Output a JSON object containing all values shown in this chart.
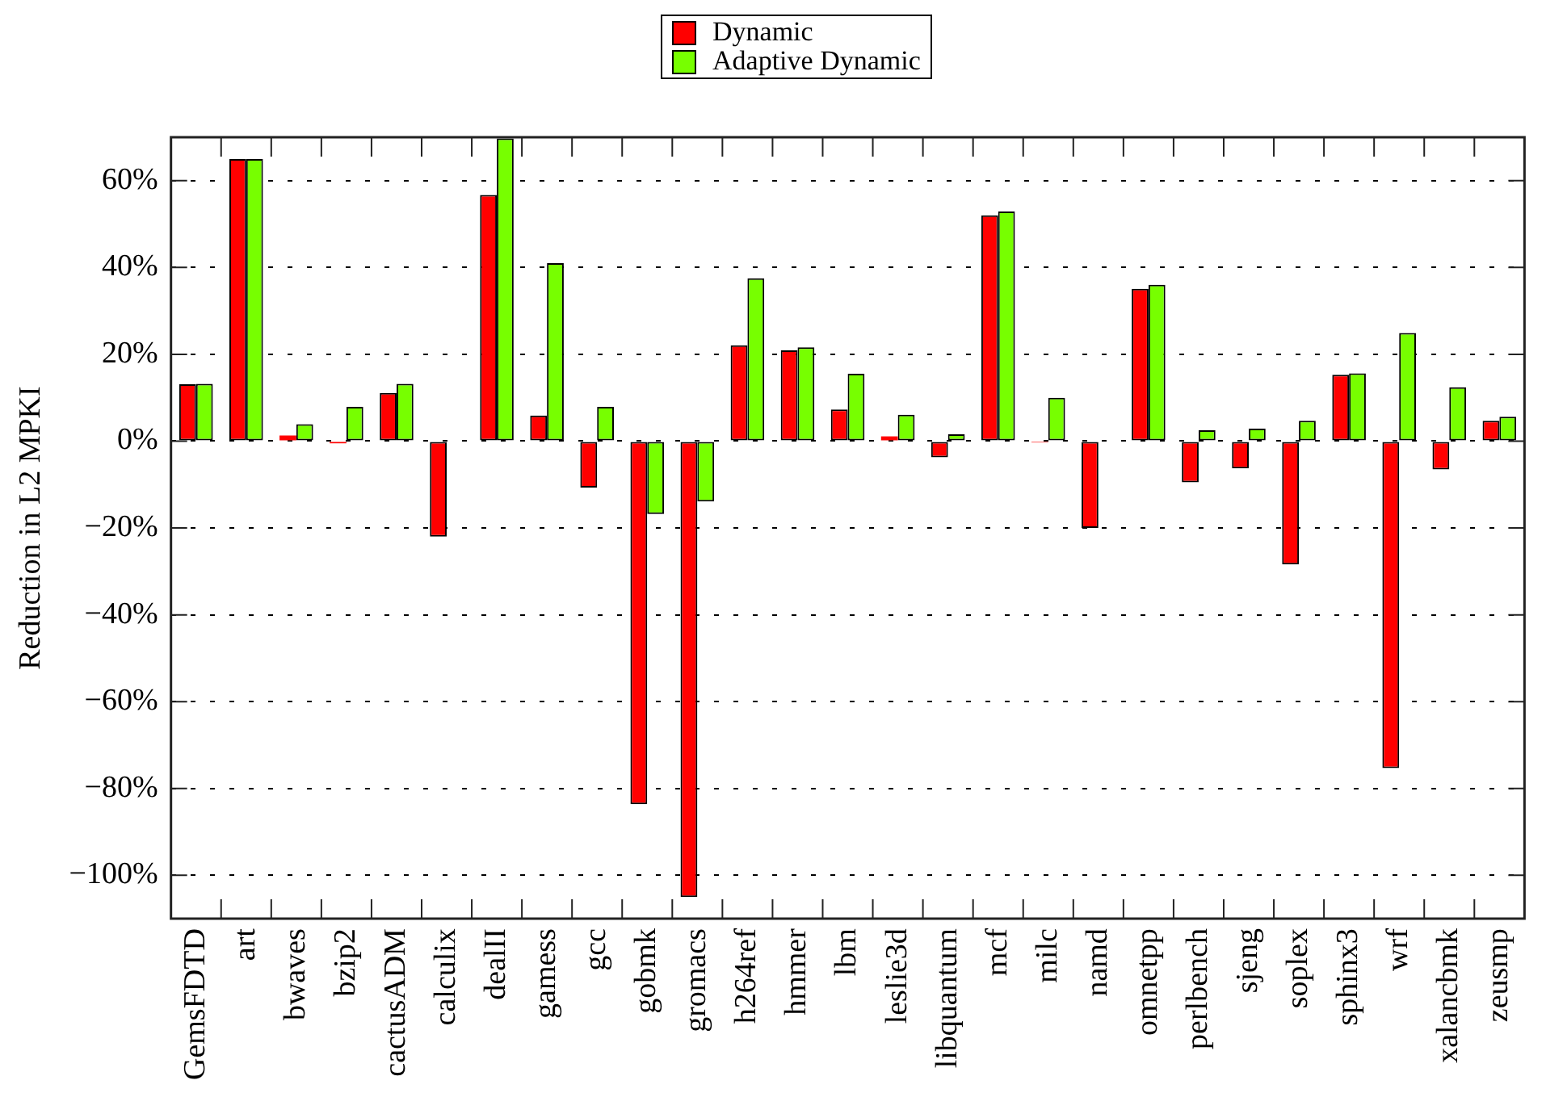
{
  "chart_data": {
    "type": "bar",
    "ylabel": "Reduction in L2 MPKI",
    "categories": [
      "GemsFDTD",
      "art",
      "bwaves",
      "bzip2",
      "cactusADM",
      "calculix",
      "dealII",
      "gamess",
      "gcc",
      "gobmk",
      "gromacs",
      "h264ref",
      "hmmer",
      "lbm",
      "leslie3d",
      "libquantum",
      "mcf",
      "milc",
      "namd",
      "omnetpp",
      "perlbench",
      "sjeng",
      "soplex",
      "sphinx3",
      "wrf",
      "xalancbmk",
      "zeusmp"
    ],
    "series": [
      {
        "name": "Dynamic",
        "color": "#ff0000",
        "values": [
          13.1,
          65,
          1.3,
          -0.5,
          11.1,
          -22,
          56.7,
          5.9,
          -10.7,
          -83.6,
          -105,
          22.1,
          20.9,
          7.3,
          1.1,
          -3.7,
          52,
          -0.3,
          -20,
          35.1,
          -9.5,
          -6.3,
          -28.4,
          15.3,
          -75.3,
          -6.5,
          4.7
        ]
      },
      {
        "name": "Adaptive Dynamic",
        "color": "#77ff00",
        "values": [
          13.2,
          65,
          3.9,
          7.9,
          13.2,
          0,
          69.7,
          41,
          7.9,
          -16.8,
          -13.9,
          37.5,
          21.6,
          15.5,
          6.1,
          1.6,
          52.9,
          10,
          null,
          36,
          2.5,
          2.9,
          4.7,
          15.6,
          24.9,
          12.4,
          5.6
        ]
      }
    ],
    "ylim": [
      -110,
      70
    ],
    "yticks": [
      {
        "value": -100,
        "label": "−100%"
      },
      {
        "value": -80,
        "label": "−80%"
      },
      {
        "value": -60,
        "label": "−60%"
      },
      {
        "value": -40,
        "label": "−40%"
      },
      {
        "value": -20,
        "label": "−20%"
      },
      {
        "value": 0,
        "label": "0%"
      },
      {
        "value": 20,
        "label": "20%"
      },
      {
        "value": 40,
        "label": "40%"
      },
      {
        "value": 60,
        "label": "60%"
      }
    ],
    "grid": "y",
    "legend": "top"
  }
}
